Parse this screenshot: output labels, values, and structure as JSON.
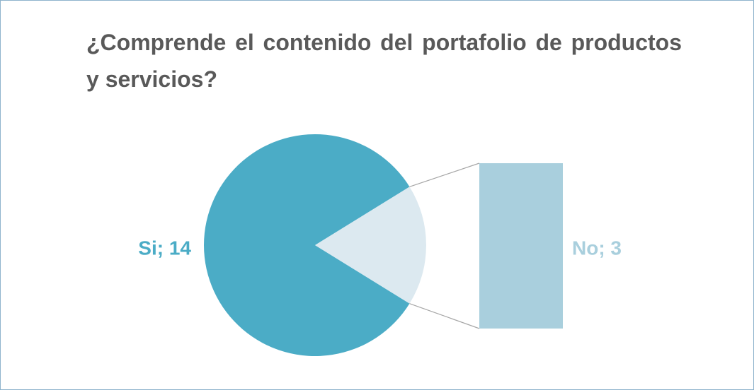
{
  "chart_data": {
    "type": "pie",
    "title": "¿Comprende el contenido del portafolio de productos y servicios?",
    "categories": [
      "Si",
      "No"
    ],
    "values": [
      14,
      3
    ],
    "value_labels": [
      "Si; 14",
      "No; 3"
    ],
    "colors": [
      "#4bacc6",
      "#dce9f0"
    ],
    "secondary_color": "#a9cfdd"
  }
}
